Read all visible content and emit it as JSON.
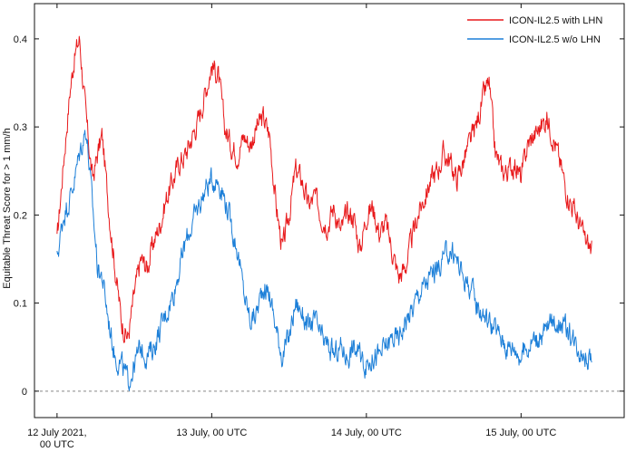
{
  "chart_data": {
    "type": "line",
    "ylabel": "Equitable Threat Score for > 1 mm/h",
    "xlabel": "",
    "ylim": [
      -0.03,
      0.44
    ],
    "xlim_hours": [
      -3.5,
      88
    ],
    "yticks": [
      0,
      0.1,
      0.2,
      0.3,
      0.4
    ],
    "ytick_labels": [
      "0",
      "0.1",
      "0.2",
      "0.3",
      "0.4"
    ],
    "xticks": [
      {
        "x": 0,
        "lines": [
          "12 July 2021,",
          "00 UTC"
        ]
      },
      {
        "x": 24,
        "lines": [
          "13 July, 00 UTC"
        ]
      },
      {
        "x": 48,
        "lines": [
          "14 July, 00 UTC"
        ]
      },
      {
        "x": 72,
        "lines": [
          "15 July, 00 UTC"
        ]
      }
    ],
    "zero_line": true,
    "grid": false,
    "legend_position": "top-right",
    "x_unit": "hours since 12 July 2021 00 UTC",
    "series": [
      {
        "name": "ICON-IL2.5 with LHN",
        "color": "#e8191b",
        "x": [
          0,
          1,
          2,
          2.7,
          3.5,
          4.5,
          5.5,
          6.3,
          7,
          8,
          9,
          10,
          11,
          12,
          13,
          14,
          15,
          16,
          17,
          18,
          19,
          20,
          21,
          22,
          23,
          24,
          25,
          26,
          27,
          28,
          29,
          30,
          31,
          32,
          33,
          34,
          35,
          36,
          37,
          38,
          39,
          40,
          41,
          42,
          43,
          44,
          45,
          46,
          47,
          48,
          49,
          50,
          51,
          52,
          53,
          54,
          55,
          56,
          57,
          58,
          59,
          60,
          61,
          62,
          63,
          64,
          65,
          66,
          67,
          68,
          69,
          70,
          71,
          72,
          73,
          74,
          75,
          76,
          77,
          78,
          79,
          80,
          81,
          82,
          83
        ],
        "values": [
          0.17,
          0.26,
          0.34,
          0.38,
          0.4,
          0.31,
          0.24,
          0.27,
          0.29,
          0.21,
          0.14,
          0.08,
          0.06,
          0.11,
          0.15,
          0.14,
          0.17,
          0.19,
          0.22,
          0.24,
          0.26,
          0.27,
          0.29,
          0.31,
          0.34,
          0.37,
          0.36,
          0.3,
          0.28,
          0.27,
          0.29,
          0.28,
          0.3,
          0.31,
          0.29,
          0.21,
          0.16,
          0.2,
          0.25,
          0.24,
          0.21,
          0.22,
          0.2,
          0.19,
          0.21,
          0.18,
          0.2,
          0.2,
          0.16,
          0.2,
          0.21,
          0.18,
          0.19,
          0.16,
          0.13,
          0.14,
          0.17,
          0.2,
          0.22,
          0.24,
          0.25,
          0.27,
          0.26,
          0.24,
          0.26,
          0.28,
          0.3,
          0.33,
          0.35,
          0.27,
          0.25,
          0.25,
          0.26,
          0.24,
          0.28,
          0.29,
          0.3,
          0.31,
          0.29,
          0.26,
          0.23,
          0.21,
          0.19,
          0.17,
          0.16
        ]
      },
      {
        "name": "ICON-IL2.5 w/o LHN",
        "color": "#1c7fd8",
        "x": [
          0,
          1,
          2,
          2.7,
          3.5,
          4.5,
          5.5,
          6.3,
          7,
          8,
          9,
          10,
          11,
          12,
          13,
          14,
          15,
          16,
          17,
          18,
          19,
          20,
          21,
          22,
          23,
          24,
          25,
          26,
          27,
          28,
          29,
          30,
          31,
          32,
          33,
          34,
          35,
          36,
          37,
          38,
          39,
          40,
          41,
          42,
          43,
          44,
          45,
          46,
          47,
          48,
          49,
          50,
          51,
          52,
          53,
          54,
          55,
          56,
          57,
          58,
          59,
          60,
          61,
          62,
          63,
          64,
          65,
          66,
          67,
          68,
          69,
          70,
          71,
          72,
          73,
          74,
          75,
          76,
          77,
          78,
          79,
          80,
          81,
          82,
          83
        ],
        "values": [
          0.15,
          0.2,
          0.22,
          0.24,
          0.27,
          0.3,
          0.21,
          0.14,
          0.13,
          0.08,
          0.04,
          0.03,
          0.01,
          0.03,
          0.05,
          0.04,
          0.05,
          0.07,
          0.09,
          0.11,
          0.14,
          0.17,
          0.19,
          0.21,
          0.23,
          0.24,
          0.24,
          0.22,
          0.19,
          0.16,
          0.11,
          0.08,
          0.09,
          0.12,
          0.11,
          0.07,
          0.04,
          0.06,
          0.1,
          0.09,
          0.07,
          0.08,
          0.06,
          0.05,
          0.04,
          0.05,
          0.04,
          0.05,
          0.04,
          0.03,
          0.04,
          0.04,
          0.05,
          0.06,
          0.06,
          0.08,
          0.09,
          0.11,
          0.12,
          0.13,
          0.14,
          0.15,
          0.16,
          0.15,
          0.13,
          0.12,
          0.1,
          0.09,
          0.08,
          0.07,
          0.06,
          0.05,
          0.05,
          0.04,
          0.05,
          0.06,
          0.06,
          0.07,
          0.08,
          0.08,
          0.07,
          0.06,
          0.05,
          0.04,
          0.04
        ]
      }
    ]
  }
}
